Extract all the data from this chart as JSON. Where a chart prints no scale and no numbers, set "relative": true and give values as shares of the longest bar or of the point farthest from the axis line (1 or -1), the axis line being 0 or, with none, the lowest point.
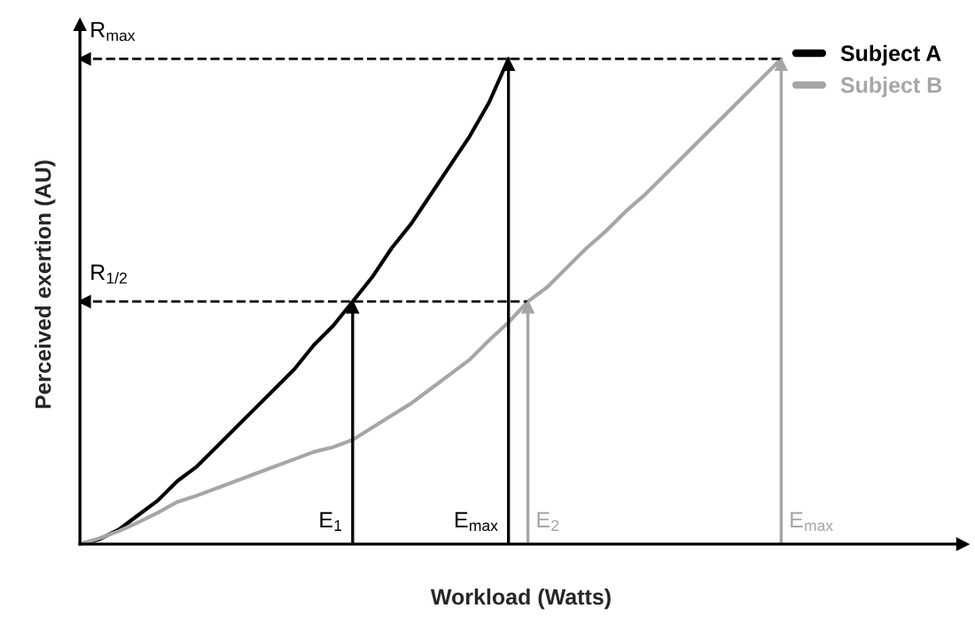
{
  "chart_data": {
    "type": "line",
    "relative": true,
    "xlabel": "Workload (Watts)",
    "ylabel": "Perceived exertion (AU)",
    "categories": [
      null,
      null,
      null,
      null,
      null,
      null,
      null,
      null,
      null,
      null,
      null,
      null,
      null,
      null,
      null,
      null,
      null,
      null,
      null,
      null,
      null,
      null,
      null,
      null,
      null,
      null,
      null,
      null,
      null,
      null,
      null,
      null,
      null,
      null,
      null,
      null,
      null,
      null,
      null,
      null,
      null,
      null,
      null,
      null,
      null,
      null
    ],
    "series": [
      {
        "name": "Subject A",
        "color": "#000000",
        "values": [
          0,
          0.01,
          0.03,
          0.06,
          0.09,
          0.13,
          0.16,
          0.2,
          0.24,
          0.28,
          0.32,
          0.36,
          0.41,
          0.45,
          0.5,
          0.55,
          0.61,
          0.66,
          0.72,
          0.78,
          0.84,
          0.91,
          1.0,
          null,
          null,
          null,
          null,
          null,
          null,
          null,
          null,
          null,
          null,
          null,
          null,
          null,
          null,
          null,
          null,
          null,
          null,
          null,
          null,
          null,
          null,
          null
        ]
      },
      {
        "name": "Subject B",
        "color": "#a6a6a6",
        "values": [
          0,
          0.012,
          0.027,
          0.045,
          0.065,
          0.087,
          0.1,
          0.115,
          0.13,
          0.145,
          0.16,
          0.175,
          0.19,
          0.2,
          0.215,
          0.24,
          0.265,
          0.29,
          0.32,
          0.35,
          0.38,
          0.42,
          0.457,
          0.5,
          0.53,
          0.57,
          0.61,
          0.645,
          0.685,
          0.72,
          0.76,
          0.8,
          0.84,
          0.88,
          0.92,
          0.96,
          1.0,
          null,
          null,
          null,
          null,
          null,
          null,
          null,
          null,
          null
        ]
      }
    ],
    "ref_lines": [
      {
        "axis": "y",
        "value": 1.0,
        "label": "R$_{max}$",
        "color": "#000000",
        "line_style": "dashed"
      },
      {
        "axis": "y",
        "value": 0.5,
        "label": "R$_{1/2}$",
        "color": "#000000",
        "line_style": "dashed"
      }
    ],
    "annotations": [
      "E$_{1}$",
      "E$_{max}$",
      "E$_{2}$",
      "E$_{max}$"
    ],
    "legend": "top right",
    "marker": "none",
    "line_style": "solid"
  }
}
